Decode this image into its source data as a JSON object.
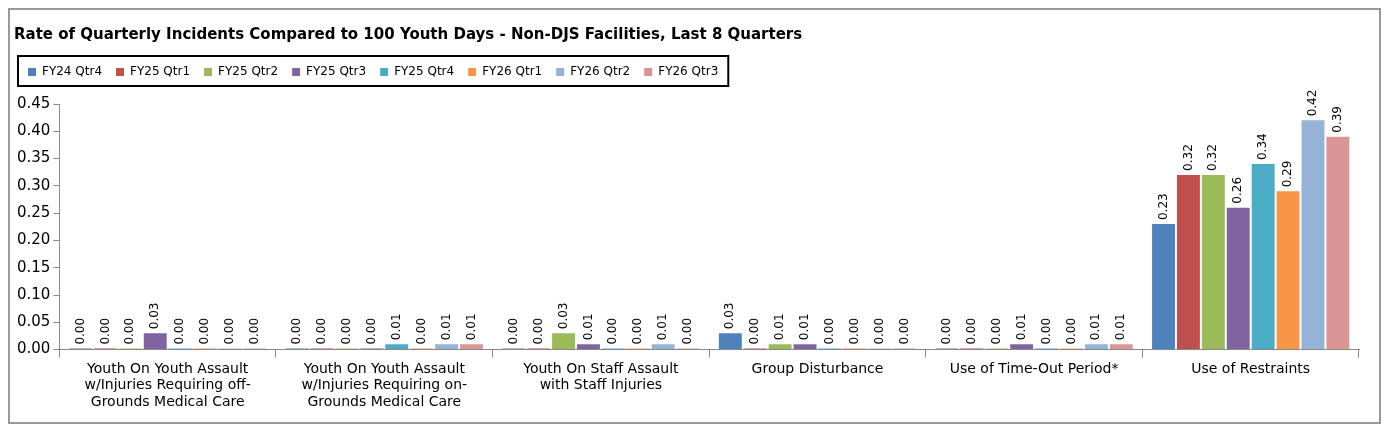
{
  "chart_data": {
    "type": "bar",
    "title": "Rate of Quarterly Incidents Compared to 100 Youth Days - Non-DJS Facilities, Last 8 Quarters",
    "categories": [
      "Youth On Youth Assault w/Injuries Requiring off-Grounds Medical Care",
      "Youth On Youth Assault w/Injuries Requiring on-Grounds Medical Care",
      "Youth On Staff Assault with Staff Injuries",
      "Group Disturbance",
      "Use of Time-Out Period*",
      "Use of Restraints"
    ],
    "series": [
      {
        "name": "FY24 Qtr4",
        "color": "#4f81bd",
        "values": [
          0,
          0,
          0,
          0.03,
          0,
          0.23
        ],
        "value_labels": [
          "0.00",
          "0.00",
          "0.00",
          "0.03",
          "0.00",
          "0.23"
        ]
      },
      {
        "name": "FY25 Qtr1",
        "color": "#c0504d",
        "values": [
          0,
          0,
          0,
          0,
          0,
          0.32
        ],
        "value_labels": [
          "0.00",
          "0.00",
          "0.00",
          "0.00",
          "0.00",
          "0.32"
        ]
      },
      {
        "name": "FY25 Qtr2",
        "color": "#9bbb59",
        "values": [
          0,
          0,
          0.03,
          0.01,
          0,
          0.32
        ],
        "value_labels": [
          "0.00",
          "0.00",
          "0.03",
          "0.01",
          "0.00",
          "0.32"
        ]
      },
      {
        "name": "FY25 Qtr3",
        "color": "#8064a2",
        "values": [
          0.03,
          0,
          0.01,
          0.01,
          0.01,
          0.26
        ],
        "value_labels": [
          "0.03",
          "0.00",
          "0.01",
          "0.01",
          "0.01",
          "0.26"
        ]
      },
      {
        "name": "FY25 Qtr4",
        "color": "#4bacc6",
        "values": [
          0,
          0.01,
          0,
          0,
          0,
          0.34
        ],
        "value_labels": [
          "0.00",
          "0.01",
          "0.00",
          "0.00",
          "0.00",
          "0.34"
        ]
      },
      {
        "name": "FY26 Qtr1",
        "color": "#f79646",
        "values": [
          0,
          0,
          0,
          0,
          0,
          0.29
        ],
        "value_labels": [
          "0.00",
          "0.00",
          "0.00",
          "0.00",
          "0.00",
          "0.29"
        ]
      },
      {
        "name": "FY26 Qtr2",
        "color": "#95b3d7",
        "values": [
          0,
          0.01,
          0.01,
          0,
          0.01,
          0.42
        ],
        "value_labels": [
          "0.00",
          "0.01",
          "0.01",
          "0.00",
          "0.01",
          "0.42"
        ]
      },
      {
        "name": "FY26 Qtr3",
        "color": "#d99694",
        "values": [
          0,
          0.01,
          0,
          0,
          0.01,
          0.39
        ],
        "value_labels": [
          "0.00",
          "0.01",
          "0.00",
          "0.00",
          "0.01",
          "0.39"
        ]
      }
    ],
    "ylim": [
      0,
      0.45
    ],
    "yticks": [
      {
        "value": 0,
        "label": "0.00"
      },
      {
        "value": 0.05,
        "label": "0.05"
      },
      {
        "value": 0.1,
        "label": "0.10"
      },
      {
        "value": 0.15,
        "label": "0.15"
      },
      {
        "value": 0.2,
        "label": "0.20"
      },
      {
        "value": 0.25,
        "label": "0.25"
      },
      {
        "value": 0.3,
        "label": "0.30"
      },
      {
        "value": 0.35,
        "label": "0.35"
      },
      {
        "value": 0.4,
        "label": "0.40"
      },
      {
        "value": 0.45,
        "label": "0.45"
      }
    ],
    "grid": false,
    "legend": "top left"
  }
}
